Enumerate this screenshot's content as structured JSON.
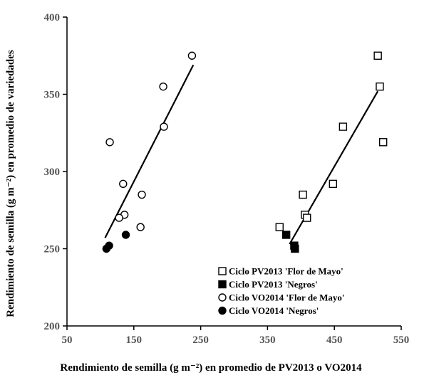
{
  "chart_data": {
    "type": "scatter",
    "xlabel": "Rendimiento de semilla (g m⁻²) en promedio de PV2013 o VO2014",
    "ylabel": "Rendimiento de semilla (g m⁻²) en promedio de variedades",
    "xlim": [
      50,
      550
    ],
    "ylim": [
      200,
      400
    ],
    "xticks": [
      50,
      150,
      250,
      350,
      450,
      550
    ],
    "yticks": [
      200,
      250,
      300,
      350,
      400
    ],
    "legend_position": "bottom-right",
    "series": [
      {
        "name": "Ciclo PV2013 'Flor de Mayo'",
        "marker": "square",
        "fill": "none",
        "points": [
          [
            515,
            375
          ],
          [
            518,
            355
          ],
          [
            463,
            329
          ],
          [
            523,
            319
          ],
          [
            403,
            285
          ],
          [
            448,
            292
          ],
          [
            406,
            272
          ],
          [
            409,
            270
          ],
          [
            368,
            264
          ]
        ]
      },
      {
        "name": "Ciclo PV2013 'Negros'",
        "marker": "square",
        "fill": "black",
        "points": [
          [
            378,
            259
          ],
          [
            390,
            252
          ],
          [
            391,
            250
          ]
        ]
      },
      {
        "name": "Ciclo VO2014 'Flor de Mayo'",
        "marker": "circle",
        "fill": "none",
        "points": [
          [
            237,
            375
          ],
          [
            194,
            355
          ],
          [
            195,
            329
          ],
          [
            114,
            319
          ],
          [
            134,
            292
          ],
          [
            162,
            285
          ],
          [
            136,
            272
          ],
          [
            128,
            270
          ],
          [
            160,
            264
          ]
        ]
      },
      {
        "name": "Ciclo VO2014 'Negros'",
        "marker": "circle",
        "fill": "black",
        "points": [
          [
            138,
            259
          ],
          [
            113,
            252
          ],
          [
            109,
            250
          ]
        ]
      }
    ],
    "trendlines": [
      {
        "x": [
          107,
          239
        ],
        "y": [
          257,
          369
        ]
      },
      {
        "x": [
          383,
          515
        ],
        "y": [
          253,
          352
        ]
      }
    ]
  }
}
